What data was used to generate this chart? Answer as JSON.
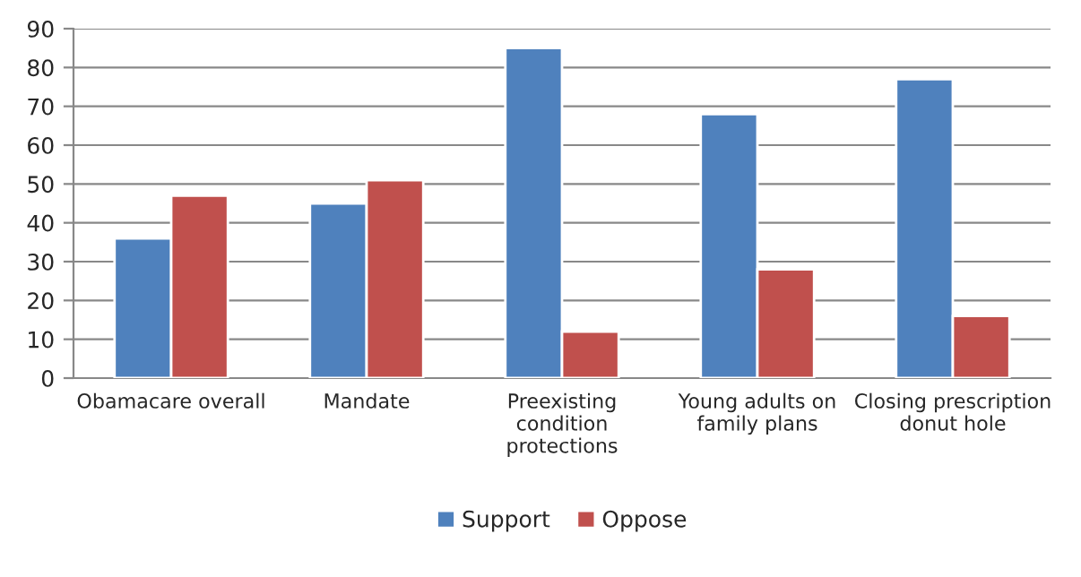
{
  "chart_data": {
    "type": "bar",
    "categories": [
      "Obamacare overall",
      "Mandate",
      "Preexisting\ncondition\nprotections",
      "Young adults on\nfamily plans",
      "Closing prescription\ndonut hole"
    ],
    "series": [
      {
        "name": "Support",
        "color": "#4f81bd",
        "values": [
          36,
          45,
          85,
          68,
          77
        ]
      },
      {
        "name": "Oppose",
        "color": "#c0504d",
        "values": [
          47,
          51,
          12,
          28,
          16
        ]
      }
    ],
    "ylim": [
      0,
      90
    ],
    "yticks": [
      0,
      10,
      20,
      30,
      40,
      50,
      60,
      70,
      80,
      90
    ],
    "grid": "y",
    "legend": "bottom"
  }
}
